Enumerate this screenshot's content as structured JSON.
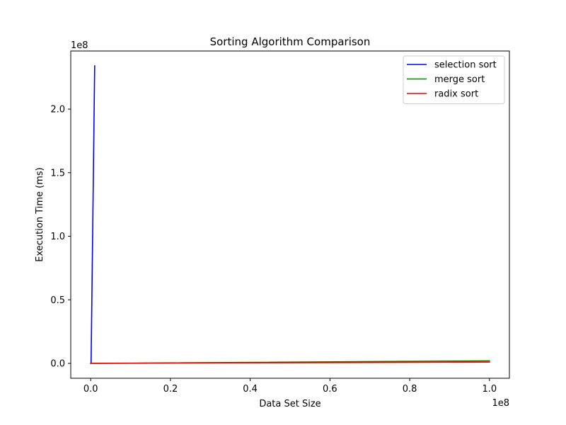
{
  "chart_data": {
    "type": "line",
    "title": "Sorting Algorithm Comparison",
    "xlabel": "Data Set Size",
    "ylabel": "Execution Time (ms)",
    "x_offset_label": "1e8",
    "y_offset_label": "1e8",
    "xlim": [
      -5000000,
      105000000
    ],
    "ylim": [
      -11700000,
      245700000
    ],
    "x_ticks": [
      {
        "value": 0,
        "label": "0.0"
      },
      {
        "value": 20000000,
        "label": "0.2"
      },
      {
        "value": 40000000,
        "label": "0.4"
      },
      {
        "value": 60000000,
        "label": "0.6"
      },
      {
        "value": 80000000,
        "label": "0.8"
      },
      {
        "value": 100000000,
        "label": "1.0"
      }
    ],
    "y_ticks": [
      {
        "value": 0,
        "label": "0.0"
      },
      {
        "value": 50000000,
        "label": "0.5"
      },
      {
        "value": 100000000,
        "label": "1.0"
      },
      {
        "value": 150000000,
        "label": "1.5"
      },
      {
        "value": 200000000,
        "label": "2.0"
      }
    ],
    "grid": false,
    "legend_position": "top-right",
    "series": [
      {
        "name": "selection sort",
        "color": "#0000ff",
        "x": [
          10,
          100,
          1000,
          10000,
          100000,
          1000000
        ],
        "y": [
          0,
          0,
          2,
          230,
          23000,
          234000000
        ]
      },
      {
        "name": "merge sort",
        "color": "#008000",
        "x": [
          10,
          100,
          1000,
          10000,
          100000,
          1000000,
          10000000,
          100000000
        ],
        "y": [
          0,
          0,
          1,
          15,
          180,
          20000,
          200000,
          2000000
        ]
      },
      {
        "name": "radix sort",
        "color": "#ff0000",
        "x": [
          10,
          100,
          1000,
          10000,
          100000,
          1000000,
          10000000,
          100000000
        ],
        "y": [
          0,
          0,
          1,
          10,
          100,
          10000,
          100000,
          1000000
        ]
      }
    ]
  }
}
